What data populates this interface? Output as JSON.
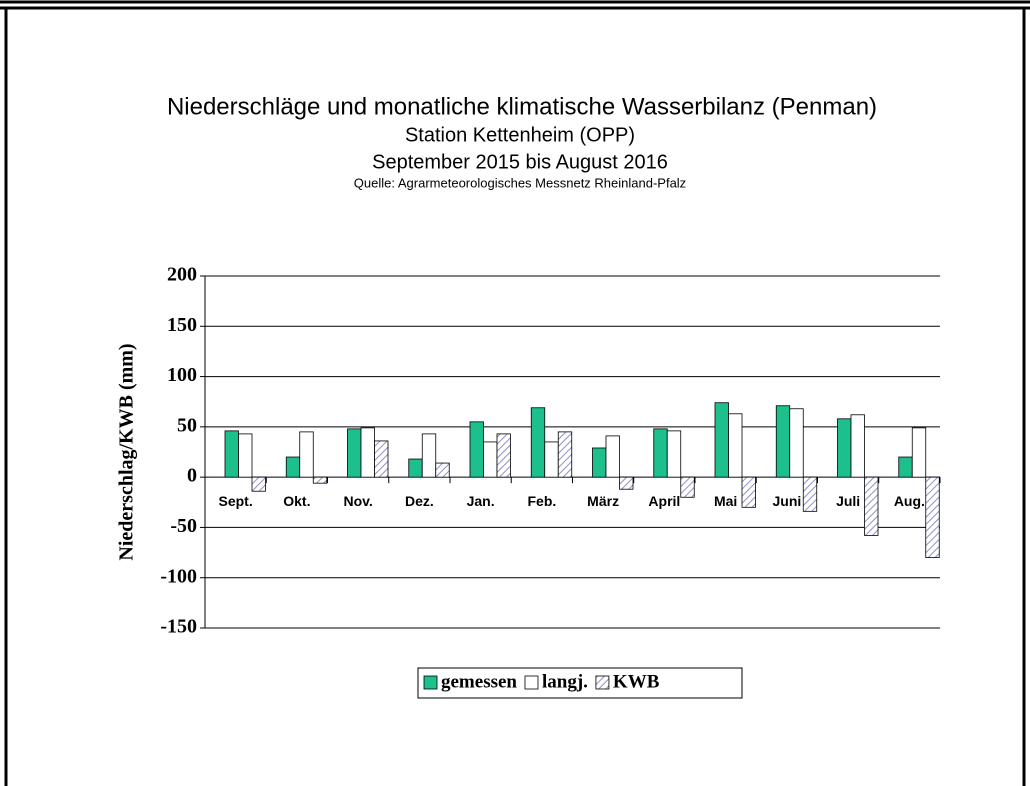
{
  "chart_data": {
    "type": "bar",
    "title": "Niederschläge und monatliche klimatische Wasserbilanz (Penman)",
    "subtitle": [
      "Station Kettenheim (OPP)",
      "September 2015 bis August 2016"
    ],
    "source": "Quelle: Agrarmeteorologisches Messnetz Rheinland-Pfalz",
    "y_label": "Niederschlag/KWB (mm)",
    "categories": [
      "Sept.",
      "Okt.",
      "Nov.",
      "Dez.",
      "Jan.",
      "Feb.",
      "März",
      "April",
      "Mai",
      "Juni",
      "Juli",
      "Aug."
    ],
    "series": [
      {
        "name": "gemessen",
        "color": "#1dbf8c",
        "values": [
          46,
          20,
          48,
          18,
          55,
          69,
          29,
          48,
          74,
          71,
          58,
          20
        ]
      },
      {
        "name": "langj.",
        "color": "#ffffff",
        "values": [
          43,
          45,
          49,
          43,
          35,
          35,
          41,
          46,
          63,
          68,
          62,
          49
        ]
      },
      {
        "name": "KWB",
        "color": "#8f8fc8",
        "hatch": true,
        "values": [
          -14,
          -6,
          36,
          14,
          43,
          45,
          -12,
          -20,
          -30,
          -34,
          -58,
          -80
        ]
      }
    ],
    "ylim": [
      -150,
      200
    ],
    "yticks": [
      -150,
      -100,
      -50,
      0,
      50,
      100,
      150,
      200
    ],
    "grid": true,
    "legend": "bottom"
  }
}
